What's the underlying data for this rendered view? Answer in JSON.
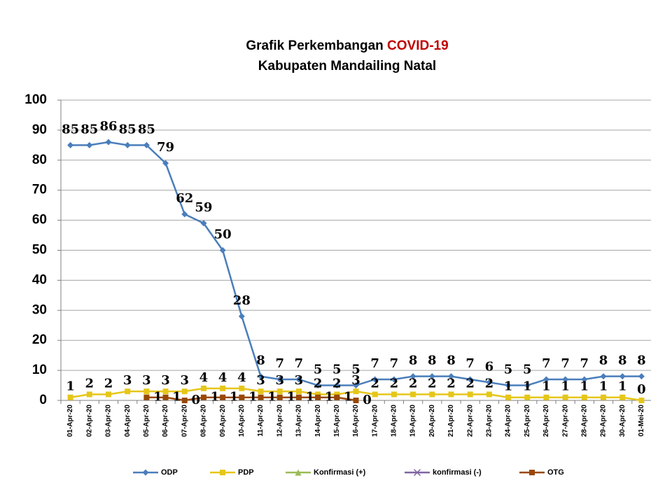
{
  "chart_data": {
    "type": "line",
    "title": "Grafik Perkembangan",
    "title_highlight": "COVID-19",
    "subtitle": "Kabupaten Mandailing Natal",
    "categories": [
      "01-Apr-20",
      "02-Apr-20",
      "03-Apr-20",
      "04-Apr-20",
      "05-Apr-20",
      "06-Apr-20",
      "07-Apr-20",
      "08-Apr-20",
      "09-Apr-20",
      "10-Apr-20",
      "11-Apr-20",
      "12-Apr-20",
      "13-Apr-20",
      "14-Apr-20",
      "15-Apr-20",
      "16-Apr-20",
      "17-Apr-20",
      "18-Apr-20",
      "19-Apr-20",
      "20-Apr-20",
      "21-Apr-20",
      "22-Apr-20",
      "23-Apr-20",
      "24-Apr-20",
      "25-Apr-20",
      "26-Apr-20",
      "27-Apr-20",
      "28-Apr-20",
      "29-Apr-20",
      "30-Apr-20",
      "01-Mei-20"
    ],
    "series": [
      {
        "name": "ODP",
        "color": "#4a7ebb",
        "marker": "diamond",
        "data_labels": true,
        "values": [
          85,
          85,
          86,
          85,
          85,
          79,
          62,
          59,
          50,
          28,
          8,
          7,
          7,
          5,
          5,
          5,
          7,
          7,
          8,
          8,
          8,
          7,
          6,
          5,
          5,
          7,
          7,
          7,
          8,
          8,
          8
        ]
      },
      {
        "name": "PDP",
        "color": "#e6c619",
        "marker": "square",
        "data_labels": true,
        "values": [
          1,
          2,
          2,
          3,
          3,
          3,
          3,
          4,
          4,
          4,
          3,
          3,
          3,
          2,
          2,
          3,
          2,
          2,
          2,
          2,
          2,
          2,
          2,
          1,
          1,
          1,
          1,
          1,
          1,
          1,
          0
        ]
      },
      {
        "name": "Konfirmasi (+)",
        "color": "#9bbb59",
        "marker": "triangle",
        "data_labels": false,
        "values": [
          null,
          null,
          null,
          null,
          null,
          null,
          null,
          null,
          null,
          null,
          null,
          null,
          null,
          null,
          null,
          null,
          null,
          null,
          null,
          null,
          null,
          null,
          null,
          null,
          null,
          null,
          null,
          null,
          null,
          null,
          null
        ]
      },
      {
        "name": "konfirmasi (-)",
        "color": "#8064a2",
        "marker": "x",
        "data_labels": false,
        "values": [
          null,
          null,
          null,
          null,
          null,
          null,
          null,
          null,
          null,
          null,
          null,
          null,
          null,
          null,
          null,
          null,
          null,
          null,
          null,
          null,
          null,
          null,
          null,
          null,
          null,
          null,
          null,
          null,
          null,
          null,
          null
        ]
      },
      {
        "name": "OTG",
        "color": "#984807",
        "marker": "square",
        "data_labels": true,
        "values": [
          null,
          null,
          null,
          null,
          1,
          1,
          0,
          1,
          1,
          1,
          1,
          1,
          1,
          1,
          1,
          0,
          null,
          null,
          null,
          null,
          null,
          null,
          null,
          null,
          null,
          null,
          null,
          null,
          null,
          null,
          null
        ]
      }
    ],
    "ylim": [
      0,
      100
    ],
    "yticks": [
      0,
      10,
      20,
      30,
      40,
      50,
      60,
      70,
      80,
      90,
      100
    ],
    "grid": true,
    "legend": "bottom"
  }
}
